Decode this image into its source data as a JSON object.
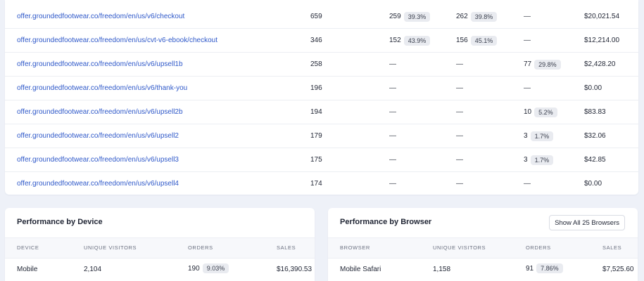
{
  "pages_table": {
    "rows": [
      {
        "url": "offer.groundedfootwear.co/freedom/en/us/v6/checkout",
        "visitors": "659",
        "a_value": "259",
        "a_pct": "39.3%",
        "b_value": "262",
        "b_pct": "39.8%",
        "c_value": "—",
        "c_pct": "",
        "sales": "$20,021.54"
      },
      {
        "url": "offer.groundedfootwear.co/freedom/en/us/cvt-v6-ebook/checkout",
        "visitors": "346",
        "a_value": "152",
        "a_pct": "43.9%",
        "b_value": "156",
        "b_pct": "45.1%",
        "c_value": "—",
        "c_pct": "",
        "sales": "$12,214.00"
      },
      {
        "url": "offer.groundedfootwear.co/freedom/en/us/v6/upsell1b",
        "visitors": "258",
        "a_value": "—",
        "a_pct": "",
        "b_value": "—",
        "b_pct": "",
        "c_value": "77",
        "c_pct": "29.8%",
        "sales": "$2,428.20"
      },
      {
        "url": "offer.groundedfootwear.co/freedom/en/us/v6/thank-you",
        "visitors": "196",
        "a_value": "—",
        "a_pct": "",
        "b_value": "—",
        "b_pct": "",
        "c_value": "—",
        "c_pct": "",
        "sales": "$0.00"
      },
      {
        "url": "offer.groundedfootwear.co/freedom/en/us/v6/upsell2b",
        "visitors": "194",
        "a_value": "—",
        "a_pct": "",
        "b_value": "—",
        "b_pct": "",
        "c_value": "10",
        "c_pct": "5.2%",
        "sales": "$83.83"
      },
      {
        "url": "offer.groundedfootwear.co/freedom/en/us/v6/upsell2",
        "visitors": "179",
        "a_value": "—",
        "a_pct": "",
        "b_value": "—",
        "b_pct": "",
        "c_value": "3",
        "c_pct": "1.7%",
        "sales": "$32.06"
      },
      {
        "url": "offer.groundedfootwear.co/freedom/en/us/v6/upsell3",
        "visitors": "175",
        "a_value": "—",
        "a_pct": "",
        "b_value": "—",
        "b_pct": "",
        "c_value": "3",
        "c_pct": "1.7%",
        "sales": "$42.85"
      },
      {
        "url": "offer.groundedfootwear.co/freedom/en/us/v6/upsell4",
        "visitors": "174",
        "a_value": "—",
        "a_pct": "",
        "b_value": "—",
        "b_pct": "",
        "c_value": "—",
        "c_pct": "",
        "sales": "$0.00"
      }
    ]
  },
  "device_panel": {
    "title": "Performance by Device",
    "columns": [
      "DEVICE",
      "UNIQUE VISITORS",
      "ORDERS",
      "SALES"
    ],
    "rows": [
      {
        "name": "Mobile",
        "visitors": "2,104",
        "orders": "190",
        "orders_pct": "9.03%",
        "sales": "$16,390.53"
      }
    ]
  },
  "browser_panel": {
    "title": "Performance by Browser",
    "button_label": "Show All 25 Browsers",
    "columns": [
      "BROWSER",
      "UNIQUE VISITORS",
      "ORDERS",
      "SALES"
    ],
    "rows": [
      {
        "name": "Mobile Safari",
        "visitors": "1,158",
        "orders": "91",
        "orders_pct": "7.86%",
        "sales": "$7,525.60"
      }
    ]
  },
  "colors": {
    "link": "#2e58c9",
    "background": "#eef1f8",
    "badge": "#e9ebf0"
  }
}
